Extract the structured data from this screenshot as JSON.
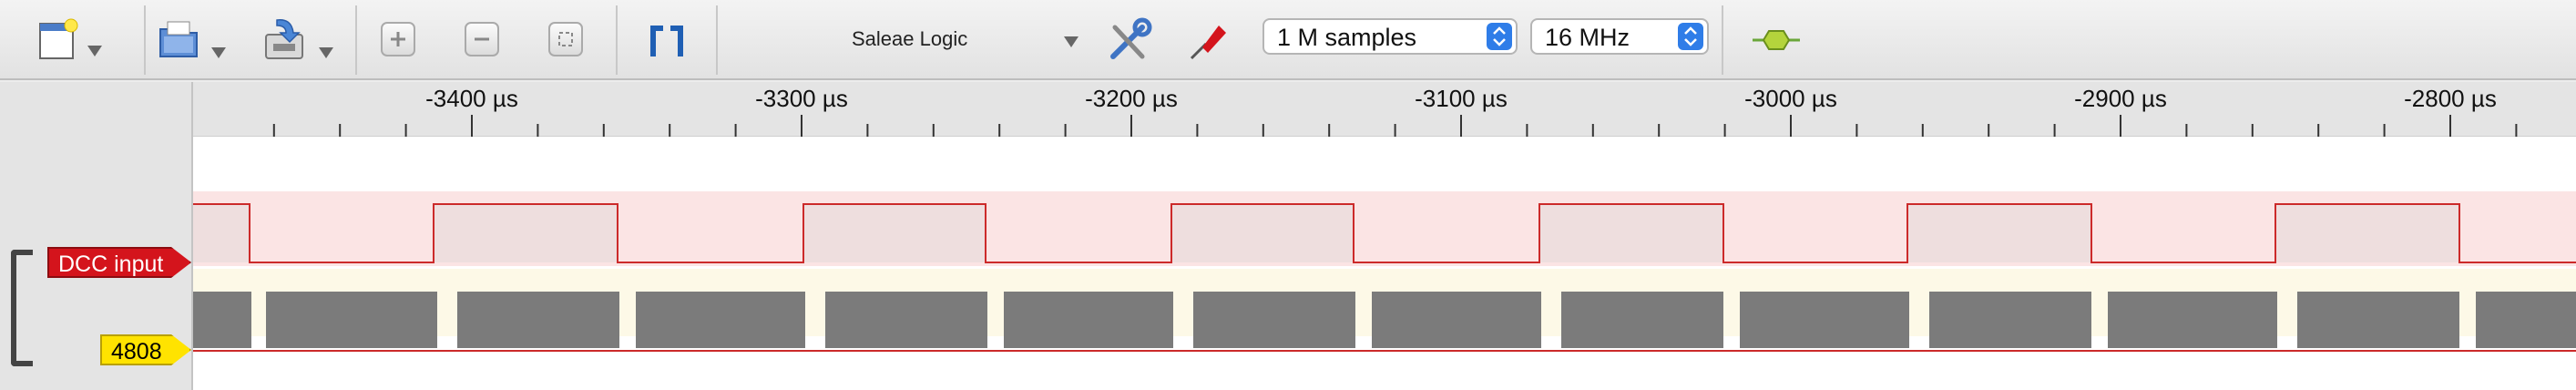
{
  "toolbar": {
    "device_name": "Saleae Logic",
    "samples_value": "1 M samples",
    "rate_value": "16 MHz",
    "icons": [
      "new-session-icon",
      "open-icon",
      "save-icon",
      "zoom-in-icon",
      "zoom-out-icon",
      "zoom-fit-icon",
      "marker-icon",
      "settings-tools-icon",
      "probe-icon",
      "analyzer-icon"
    ]
  },
  "ruler": {
    "unit": "µs",
    "ticks": [
      {
        "t": -3400,
        "label": "-3400 µs"
      },
      {
        "t": -3300,
        "label": "-3300 µs"
      },
      {
        "t": -3200,
        "label": "-3200 µs"
      },
      {
        "t": -3100,
        "label": "-3100 µs"
      },
      {
        "t": -3000,
        "label": "-3000 µs"
      },
      {
        "t": -2900,
        "label": "-2900 µs"
      },
      {
        "t": -2800,
        "label": "-2800 µs"
      }
    ]
  },
  "channels": [
    {
      "name": "DCC input",
      "color": "#d4141c"
    },
    {
      "name": "4808",
      "color": "#ffe300"
    }
  ],
  "colors": {
    "accent_blue": "#2f7de8",
    "wave_high": "#2aa52a",
    "wave_low": "#cc2a2a",
    "channel0_band": "#fbe4e4",
    "bus_fill": "#7b7b7b",
    "bus_bg": "#fdf9e7"
  }
}
